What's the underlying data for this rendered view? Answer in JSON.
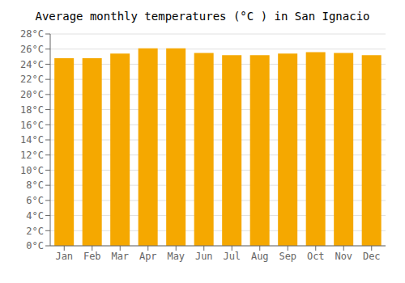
{
  "chart_data": {
    "type": "bar",
    "title": "Average monthly temperatures (°C ) in San Ignacio",
    "categories": [
      "Jan",
      "Feb",
      "Mar",
      "Apr",
      "May",
      "Jun",
      "Jul",
      "Aug",
      "Sep",
      "Oct",
      "Nov",
      "Dec"
    ],
    "values": [
      24.8,
      24.8,
      25.4,
      26.1,
      26.1,
      25.5,
      25.2,
      25.2,
      25.4,
      25.6,
      25.5,
      25.2
    ],
    "color": "#F5A800",
    "ylim": [
      0,
      28
    ],
    "yticks": [
      {
        "value": 0,
        "label": "0°C"
      },
      {
        "value": 2,
        "label": "2°C"
      },
      {
        "value": 4,
        "label": "4°C"
      },
      {
        "value": 6,
        "label": "6°C"
      },
      {
        "value": 8,
        "label": "8°C"
      },
      {
        "value": 10,
        "label": "10°C"
      },
      {
        "value": 12,
        "label": "12°C"
      },
      {
        "value": 14,
        "label": "14°C"
      },
      {
        "value": 16,
        "label": "16°C"
      },
      {
        "value": 18,
        "label": "18°C"
      },
      {
        "value": 20,
        "label": "20°C"
      },
      {
        "value": 22,
        "label": "22°C"
      },
      {
        "value": 24,
        "label": "24°C"
      },
      {
        "value": 26,
        "label": "26°C"
      },
      {
        "value": 28,
        "label": "28°C"
      }
    ],
    "grid": true
  }
}
